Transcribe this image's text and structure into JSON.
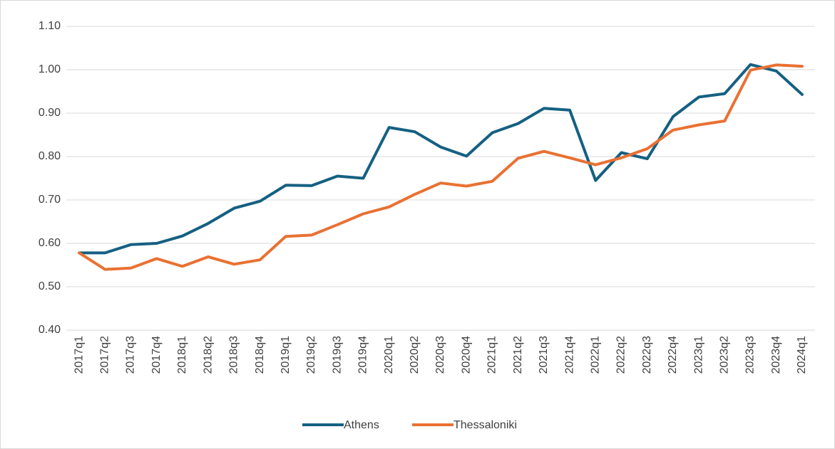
{
  "chart_data": {
    "type": "line",
    "categories": [
      "2017q1",
      "2017q2",
      "2017q3",
      "2017q4",
      "2018q1",
      "2018q2",
      "2018q3",
      "2018q4",
      "2019q1",
      "2019q2",
      "2019q3",
      "2019q4",
      "2020q1",
      "2020q2",
      "2020q3",
      "2020q4",
      "2021q1",
      "2021q2",
      "2021q3",
      "2021q4",
      "2022q1",
      "2022q2",
      "2022q3",
      "2022q4",
      "2023q1",
      "2023q2",
      "2023q3",
      "2023q4",
      "2024q1"
    ],
    "series": [
      {
        "name": "Athens",
        "color": "#156082",
        "values": [
          0.578,
          0.578,
          0.597,
          0.6,
          0.617,
          0.646,
          0.681,
          0.697,
          0.734,
          0.733,
          0.755,
          0.75,
          0.867,
          0.857,
          0.822,
          0.801,
          0.855,
          0.876,
          0.911,
          0.907,
          0.745,
          0.809,
          0.795,
          0.892,
          0.937,
          0.945,
          1.012,
          0.997,
          0.943
        ]
      },
      {
        "name": "Thessaloniki",
        "color": "#e97132",
        "values": [
          0.578,
          0.54,
          0.543,
          0.565,
          0.547,
          0.569,
          0.552,
          0.562,
          0.616,
          0.619,
          0.643,
          0.668,
          0.684,
          0.713,
          0.739,
          0.732,
          0.743,
          0.796,
          0.812,
          0.797,
          0.781,
          0.797,
          0.818,
          0.861,
          0.873,
          0.882,
          0.999,
          1.011,
          1.008
        ]
      }
    ],
    "ylim": [
      0.4,
      1.1
    ],
    "yticks": [
      {
        "value": 0.4,
        "label": "0.40"
      },
      {
        "value": 0.5,
        "label": "0.50"
      },
      {
        "value": 0.6,
        "label": "0.60"
      },
      {
        "value": 0.7,
        "label": "0.70"
      },
      {
        "value": 0.8,
        "label": "0.80"
      },
      {
        "value": 0.9,
        "label": "0.90"
      },
      {
        "value": 1.0,
        "label": "1.00"
      },
      {
        "value": 1.1,
        "label": "1.10"
      }
    ],
    "grid": true,
    "legend": "bottom"
  }
}
